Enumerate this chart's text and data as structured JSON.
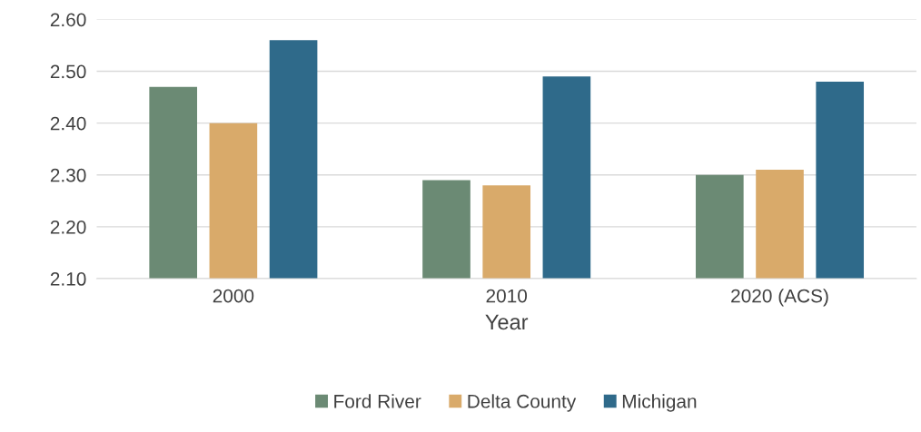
{
  "chart_data": {
    "type": "bar",
    "xlabel": "Year",
    "categories": [
      "2000",
      "2010",
      "2020 (ACS)"
    ],
    "series": [
      {
        "name": "Ford River",
        "color": "#6b8a74",
        "values": [
          2.47,
          2.29,
          2.3
        ]
      },
      {
        "name": "Delta County",
        "color": "#d9aa6a",
        "values": [
          2.4,
          2.28,
          2.31
        ]
      },
      {
        "name": "Michigan",
        "color": "#2f6a8a",
        "values": [
          2.56,
          2.49,
          2.48
        ]
      }
    ],
    "ylim": [
      2.1,
      2.6
    ],
    "yticks": [
      {
        "value": 2.1,
        "label": "2.10"
      },
      {
        "value": 2.2,
        "label": "2.20"
      },
      {
        "value": 2.3,
        "label": "2.30"
      },
      {
        "value": 2.4,
        "label": "2.40"
      },
      {
        "value": 2.5,
        "label": "2.50"
      },
      {
        "value": 2.6,
        "label": "2.60"
      }
    ],
    "grid": "y",
    "legend": "bottom"
  }
}
